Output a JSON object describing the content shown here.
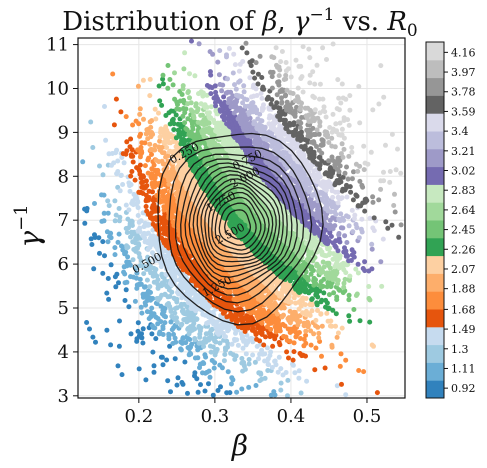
{
  "chart_data": {
    "type": "scatter",
    "title": {
      "prefix": "Distribution of ",
      "beta": "β",
      "comma": ", ",
      "gamma": "γ",
      "minus1": "−1",
      "vs": " vs. ",
      "R": "R",
      "R_sub": "0"
    },
    "xlabel": "β",
    "ylabel": {
      "base": "γ",
      "sup": "−1"
    },
    "xlim": [
      0.12,
      0.55
    ],
    "ylim": [
      2.95,
      11.15
    ],
    "xticks": [
      0.2,
      0.3,
      0.4,
      0.5
    ],
    "xtick_labels": [
      "0.2",
      "0.3",
      "0.4",
      "0.5"
    ],
    "yticks": [
      3,
      4,
      5,
      6,
      7,
      8,
      9,
      10,
      11
    ],
    "ytick_labels": [
      "3",
      "4",
      "5",
      "6",
      "7",
      "8",
      "9",
      "10",
      "11"
    ],
    "grid": true,
    "colorbar": {
      "range": [
        0.825,
        4.26
      ],
      "ticks": [
        0.92,
        1.11,
        1.3,
        1.49,
        1.68,
        1.88,
        2.07,
        2.26,
        2.45,
        2.64,
        2.83,
        3.02,
        3.21,
        3.4,
        3.59,
        3.78,
        3.97,
        4.16
      ],
      "tick_labels": [
        "0.92",
        "1.11",
        "1.3",
        "1.49",
        "1.68",
        "1.88",
        "2.07",
        "2.26",
        "2.45",
        "2.64",
        "2.83",
        "3.02",
        "3.21",
        "3.4",
        "3.59",
        "3.78",
        "3.97",
        "4.16"
      ],
      "colors": [
        "#3182bd",
        "#6baed6",
        "#9ecae1",
        "#c6dbef",
        "#e6550d",
        "#fd8d3c",
        "#fdae6b",
        "#fdd0a2",
        "#31a354",
        "#74c476",
        "#a1d99b",
        "#c7e9c0",
        "#756bb1",
        "#9e9ac8",
        "#bcbddc",
        "#dadaeb",
        "#636363",
        "#969696",
        "#bdbdbd",
        "#d9d9d9"
      ]
    },
    "scatter": {
      "x_mean": 0.335,
      "x_sd": 0.066,
      "y_mean": 7.0,
      "y_sd": 1.4,
      "correlation": 0.02
    },
    "contours": {
      "center": [
        0.33,
        6.9
      ],
      "sd_x": 0.046,
      "sd_y": 0.92,
      "levels": [
        0.25,
        0.5,
        0.75,
        1.0,
        1.25,
        1.5,
        1.75,
        2.0,
        2.25,
        2.5,
        2.75,
        3.0,
        3.25,
        3.5,
        3.75
      ],
      "labels": [
        {
          "text": "0.250",
          "x": 0.262,
          "y": 8.45
        },
        {
          "text": "0.750",
          "x": 0.345,
          "y": 8.3
        },
        {
          "text": "0.500",
          "x": 0.213,
          "y": 5.95
        },
        {
          "text": "1.250",
          "x": 0.305,
          "y": 5.42
        },
        {
          "text": "1.750",
          "x": 0.31,
          "y": 7.35
        },
        {
          "text": "2.000",
          "x": 0.342,
          "y": 7.9
        },
        {
          "text": "2.500",
          "x": 0.322,
          "y": 6.62
        }
      ]
    }
  }
}
